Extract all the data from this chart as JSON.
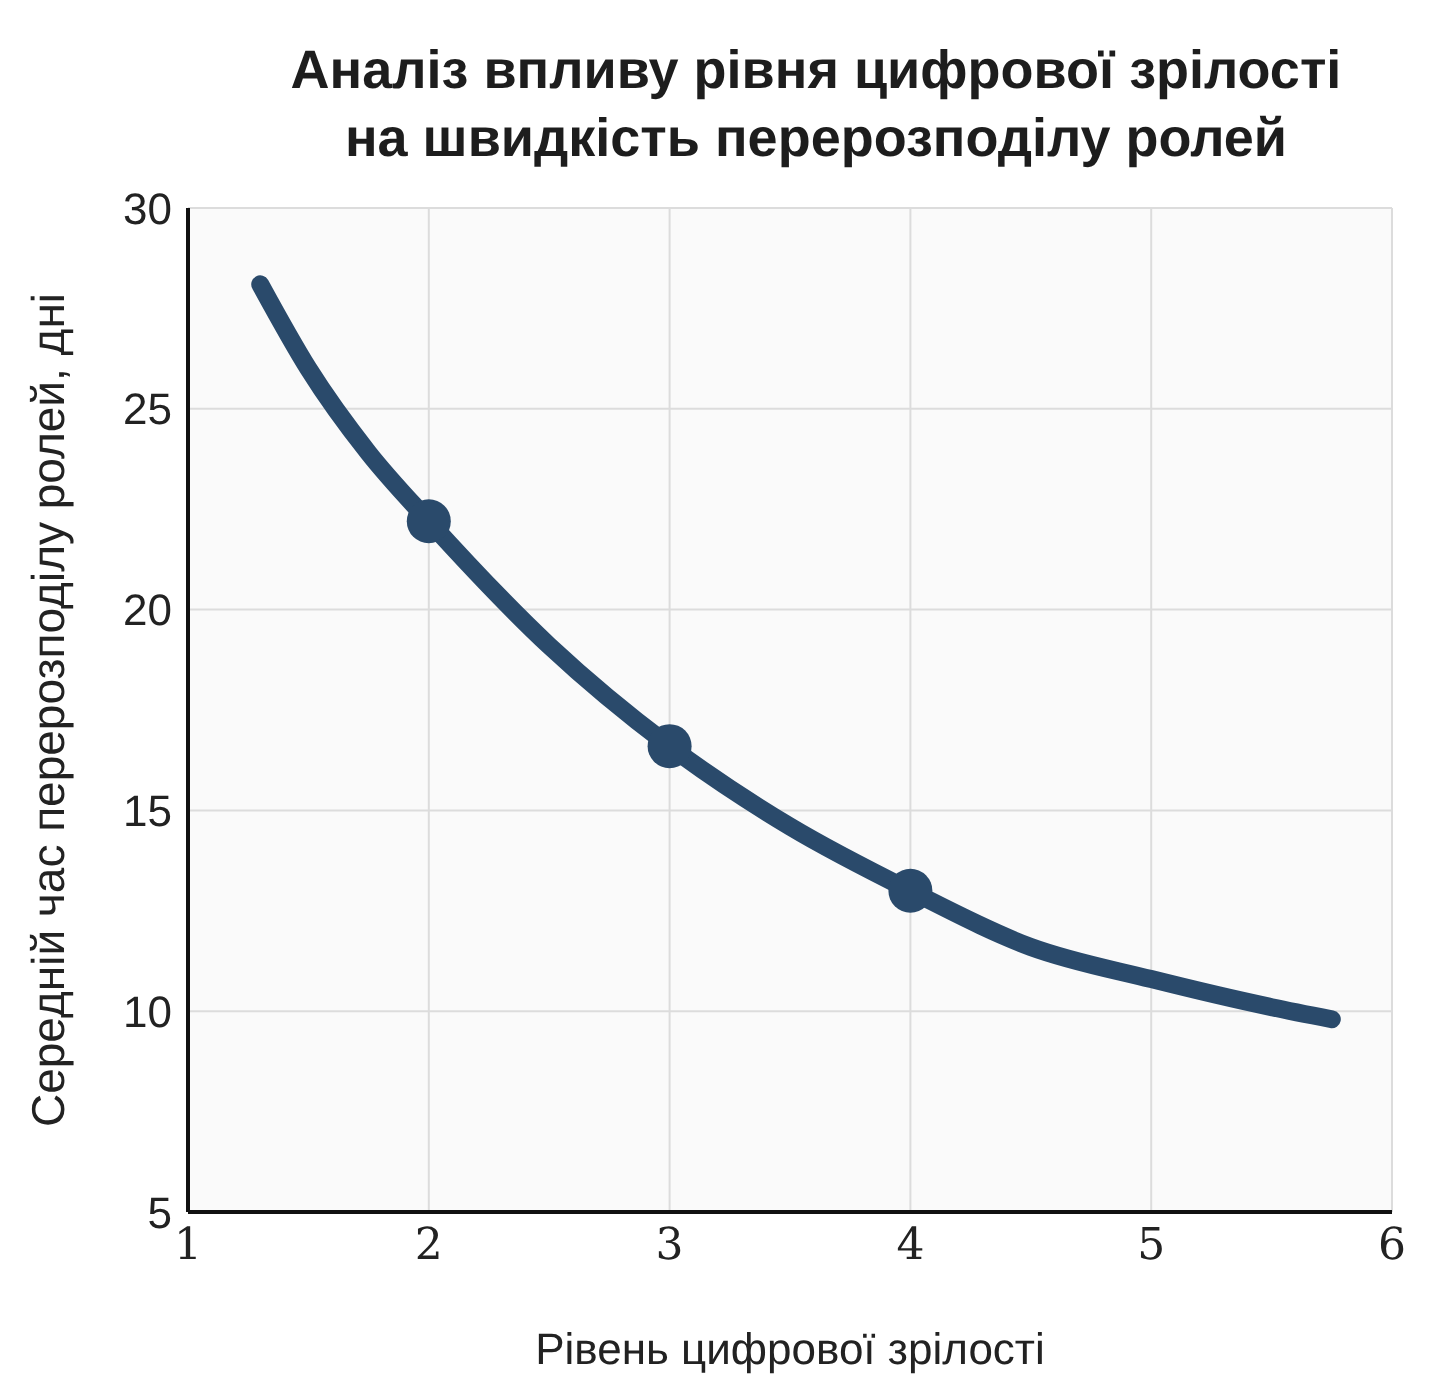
{
  "chart_data": {
    "type": "line",
    "title": "Аналіз впливу рівня цифрової зрілості\nна швидкість перерозподілу ролей",
    "xlabel": "Рівень цифрової зрілості",
    "ylabel": "Середній час перерозподілу ролей, дні",
    "series": [
      {
        "color": "#2a4a6b",
        "marker": "none",
        "x": [
          1.3,
          1.5,
          1.75,
          2,
          2.5,
          3,
          3.5,
          4,
          4.5,
          5,
          5.5,
          5.75
        ],
        "values": [
          28.1,
          26.0,
          23.9,
          22.2,
          19.1,
          16.6,
          14.6,
          13.0,
          11.6,
          10.8,
          10.1,
          9.8
        ]
      },
      {
        "type": "scatter",
        "color": "#2a4a6b",
        "marker": "circle",
        "x": [
          2,
          3,
          4
        ],
        "values": [
          22.2,
          16.6,
          13.0
        ]
      }
    ],
    "xlim": [
      1,
      6
    ],
    "xticks": [
      1,
      2,
      3,
      4,
      5,
      6
    ],
    "ylim": [
      5,
      30
    ],
    "yticks": [
      5,
      10,
      15,
      20,
      25,
      30
    ],
    "grid": true,
    "legend": false
  }
}
